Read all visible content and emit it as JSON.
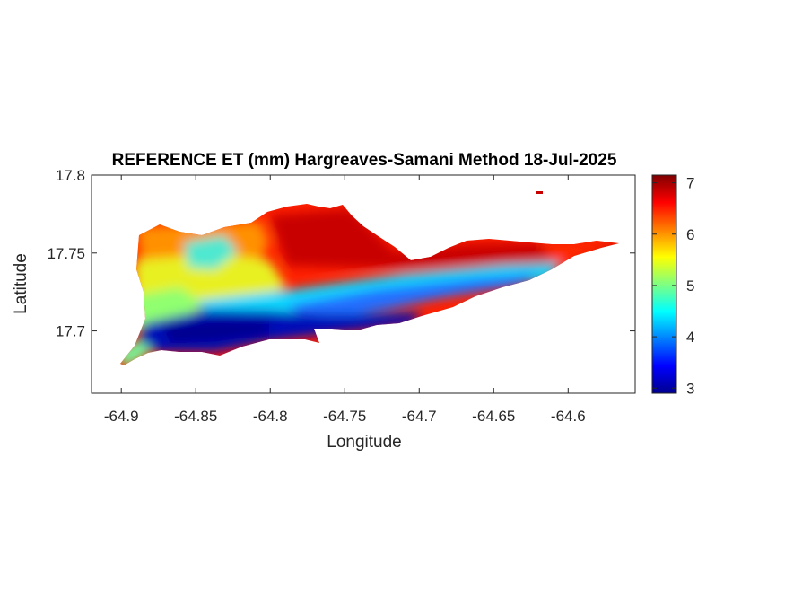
{
  "chart_data": {
    "type": "heatmap",
    "title": "REFERENCE ET (mm) Hargreaves-Samani Method  18-Jul-2025",
    "xlabel": "Longitude",
    "ylabel": "Latitude",
    "xlim": [
      -64.92,
      -64.555
    ],
    "ylim": [
      17.66,
      17.8
    ],
    "x_ticks": [
      -64.9,
      -64.85,
      -64.8,
      -64.75,
      -64.7,
      -64.65,
      -64.6
    ],
    "x_tick_labels": [
      "-64.9",
      "-64.85",
      "-64.8",
      "-64.75",
      "-64.7",
      "-64.65",
      "-64.6"
    ],
    "y_ticks": [
      17.7,
      17.75,
      17.8
    ],
    "y_tick_labels": [
      "17.7",
      "17.75",
      "17.8"
    ],
    "colorbar": {
      "colormap": "jet",
      "range": [
        2.9,
        7.15
      ],
      "ticks": [
        3,
        4,
        5,
        6,
        7
      ],
      "tick_labels": [
        "3",
        "4",
        "5",
        "6",
        "7"
      ]
    },
    "value_regions": [
      {
        "region": "north coast / northeast",
        "value": 6.8
      },
      {
        "region": "northwest upland",
        "value": 5.6
      },
      {
        "region": "west",
        "value": 5.2
      },
      {
        "region": "central southern band",
        "value": 4.3
      },
      {
        "region": "south coast",
        "value": 3.3
      },
      {
        "region": "east end",
        "value": 6.5
      }
    ],
    "grid": false,
    "box": true
  }
}
